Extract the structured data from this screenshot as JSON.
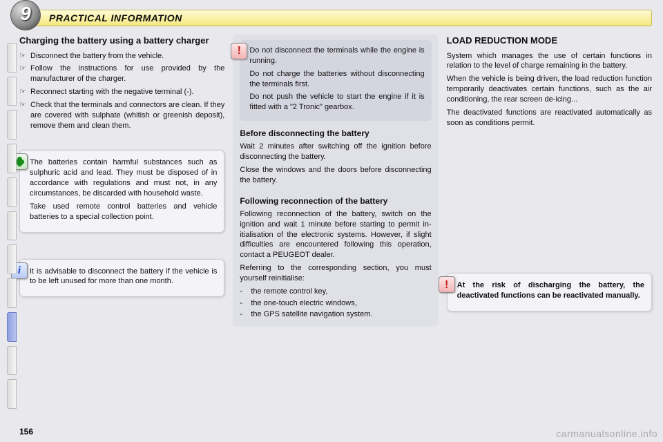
{
  "chapter_number": "9",
  "header_title": "PRACTICAL INFORMATION",
  "page_number": "156",
  "watermark": "carmanualsonline.info",
  "col1": {
    "title": "Charging the battery using a battery charger",
    "bullets": [
      "Disconnect the battery from the ve­hicle.",
      "Follow the instructions for use pro­vided by the manufacturer of the charger.",
      "Reconnect starting with the nega­tive terminal (-).",
      "Check that the terminals and connec­tors are clean. If they are covered with sulphate (whitish or greenish deposit), remove them and clean them."
    ],
    "eco_panel": [
      "The batteries contain harmful sub­stances such as sulphuric acid and lead. They must be disposed of in accordance with regulations and must not, in any circumstances, be discarded with household waste.",
      "Take used remote control batteries and vehicle batteries to a special collection point."
    ],
    "info_panel": "It is advisable to disconnect the battery if the vehicle is to be left un­used for more than one month."
  },
  "col2": {
    "warn_panel": [
      "Do not disconnect the terminals while the engine is running.",
      "Do not charge the batteries without disconnecting the terminals first.",
      "Do not push the vehicle to start the engine if it is fitted with a \"2 Tronic\" gearbox."
    ],
    "section_a_title": "Before disconnecting the battery",
    "section_a_paras": [
      "Wait 2 minutes after switching off the ignition before disconnecting the battery.",
      "Close the windows and the doors before disconnecting the battery."
    ],
    "section_b_title": "Following reconnection of the battery",
    "section_b_paras": [
      "Following reconnection of the bat­tery, switch on the ignition and wait 1 minute before starting to permit in­itialisation of the electronic systems. However, if slight difficulties are en­countered following this operation, contact a PEUGEOT dealer.",
      "Referring to the corresponding sec­tion, you must yourself reinitialise:"
    ],
    "dashes": [
      "the remote control key,",
      "the one-touch electric windows,",
      "the GPS satellite navigation system."
    ]
  },
  "col3": {
    "title": "LOAD REDUCTION MODE",
    "paras": [
      "System which manages the use of cer­tain functions in relation to the level of charge remaining in the battery.",
      "When the vehicle is being driven, the load reduction function temporarily deactivates certain functions, such as the air condi­tioning, the rear screen de-icing...",
      "The deactivated functions are reactivat­ed automatically as soon as conditions permit."
    ],
    "warn_panel": "At the risk of discharging the bat­tery, the deactivated functions can be reactivated manually."
  },
  "bullet_mark": "☞",
  "tabs": {
    "count": 11,
    "active_index": 8
  }
}
